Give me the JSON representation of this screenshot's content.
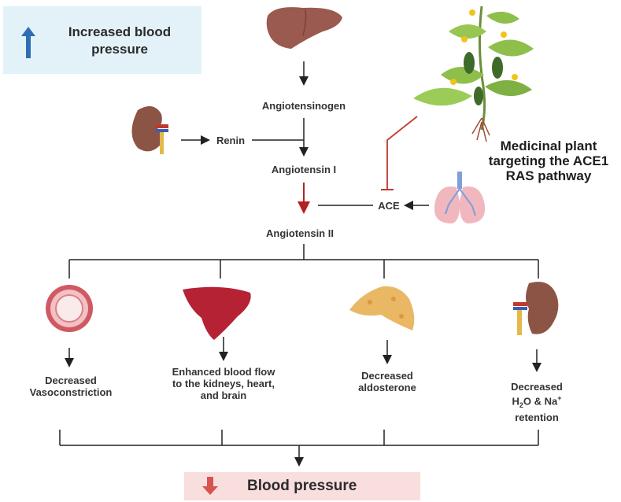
{
  "header": {
    "title": "Increased blood pressure",
    "icon": "arrow-up-icon",
    "accent": "#2f6db5",
    "background": "#e3f2f9"
  },
  "pathway": {
    "angiotensinogen": "Angiotensinogen",
    "renin": "Renin",
    "angiotensin1": "Angiotensin I",
    "ace": "ACE",
    "angiotensin2": "Angiotensin II"
  },
  "plant": {
    "label": "Medicinal plant targeting the ACE1 RAS pathway",
    "inhibit_color": "#c0392b"
  },
  "effects": [
    {
      "label": "Decreased Vasoconstriction",
      "icon": "blood-vessel-icon"
    },
    {
      "label": "Enhanced blood flow to the kidneys, heart, and brain",
      "icon": "liver-icon"
    },
    {
      "label": "Decreased aldosterone",
      "icon": "adrenal-gland-icon"
    },
    {
      "label_top": "Decreased",
      "label_mid_a": "H",
      "label_sub": "2",
      "label_mid_b": "O & Na",
      "label_sup": "+",
      "label_bottom": "retention",
      "icon": "kidney-icon"
    }
  ],
  "footer": {
    "title": "Blood pressure",
    "icon": "arrow-down-icon",
    "accent": "#d9534f",
    "background": "#f9dede"
  }
}
